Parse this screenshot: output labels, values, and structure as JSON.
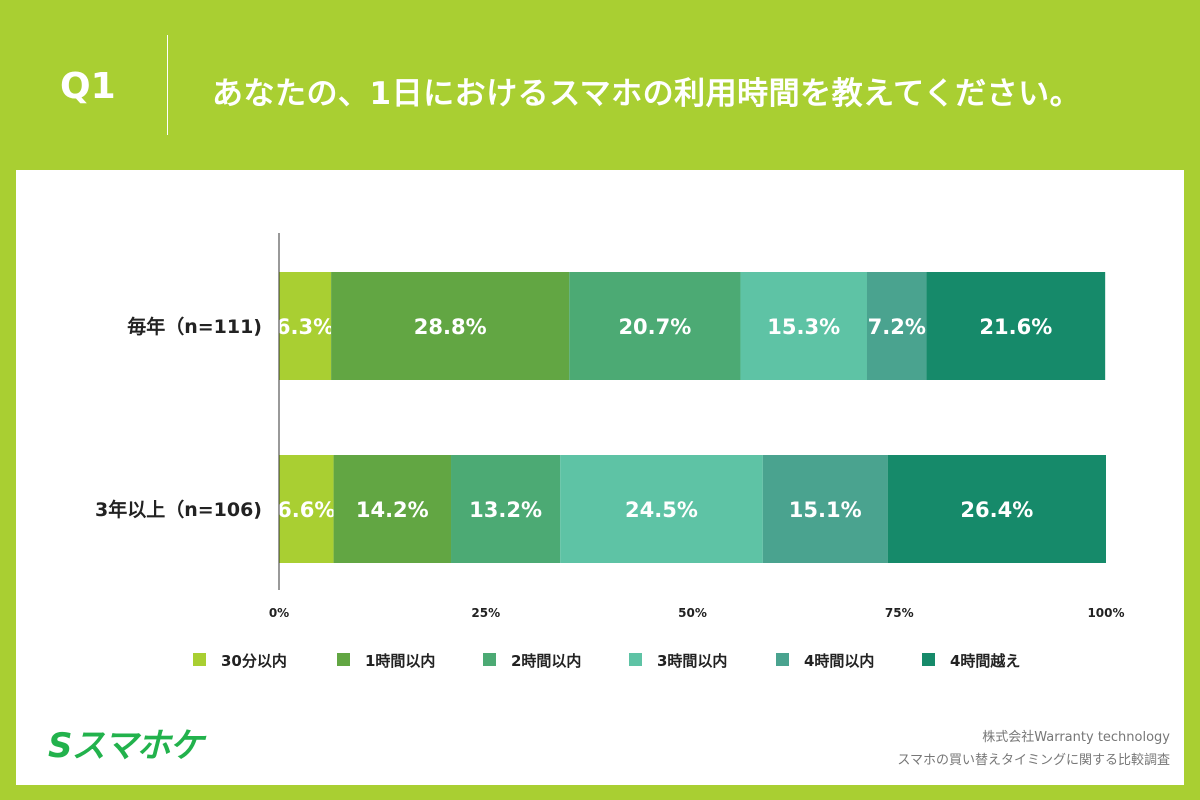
{
  "header": {
    "q": "Q1",
    "title": "あなたの、1日におけるスマホの利用時間を教えてください。"
  },
  "colors": {
    "background": "#a9cf32",
    "logo": "#22b24c"
  },
  "chart_data": {
    "type": "bar",
    "orientation": "horizontal",
    "stacked": true,
    "normalized": true,
    "categories": [
      "毎年（n=111)",
      "3年以上（n=106)"
    ],
    "series": [
      {
        "name": "30分以内",
        "color": "#a9cf32",
        "values": [
          6.3,
          6.6
        ]
      },
      {
        "name": "1時間以内",
        "color": "#62a643",
        "values": [
          28.8,
          14.2
        ]
      },
      {
        "name": "2時間以内",
        "color": "#4caa74",
        "values": [
          20.7,
          13.2
        ]
      },
      {
        "name": "3時間以内",
        "color": "#5ec3a5",
        "values": [
          15.3,
          24.5
        ]
      },
      {
        "name": "4時間以内",
        "color": "#4aa38f",
        "values": [
          7.2,
          15.1
        ]
      },
      {
        "name": "4時間越え",
        "color": "#168a6a",
        "values": [
          21.6,
          26.4
        ]
      }
    ],
    "xlim": [
      0,
      100
    ],
    "xticks": [
      "0%",
      "25%",
      "50%",
      "75%",
      "100%"
    ],
    "legend": "bottom",
    "grid": false
  },
  "footer": {
    "logo": "Sスマホケ",
    "company": "株式会社Warranty technology",
    "survey": "スマホの買い替えタイミングに関する比較調査"
  }
}
